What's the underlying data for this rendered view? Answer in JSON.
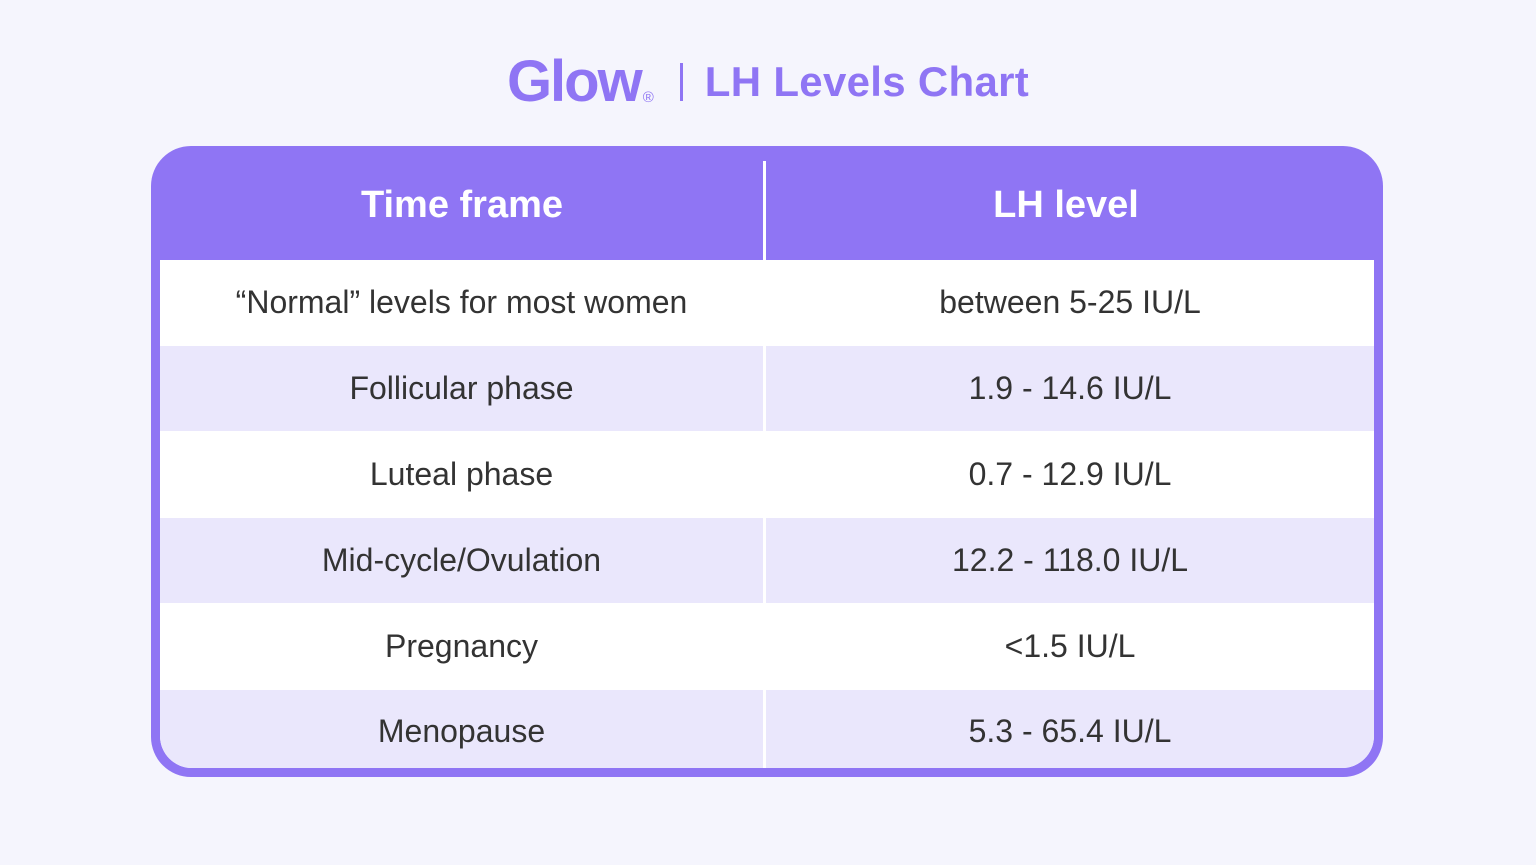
{
  "header": {
    "logo": "Glow",
    "logo_mark": "®",
    "title": "LH Levels Chart"
  },
  "colors": {
    "accent": "#8f75f4",
    "background": "#f5f5fd",
    "row_alt": "#eae7fc",
    "text": "#333333"
  },
  "table": {
    "columns": [
      "Time frame",
      "LH level"
    ],
    "rows": [
      {
        "time_frame": "“Normal” levels for most women",
        "lh_level": "between 5-25 IU/L"
      },
      {
        "time_frame": "Follicular phase",
        "lh_level": "1.9 - 14.6 IU/L"
      },
      {
        "time_frame": "Luteal phase",
        "lh_level": "0.7 - 12.9 IU/L"
      },
      {
        "time_frame": "Mid-cycle/Ovulation",
        "lh_level": "12.2 - 118.0 IU/L"
      },
      {
        "time_frame": "Pregnancy",
        "lh_level": "<1.5 IU/L"
      },
      {
        "time_frame": "Menopause",
        "lh_level": "5.3 - 65.4 IU/L"
      }
    ]
  }
}
